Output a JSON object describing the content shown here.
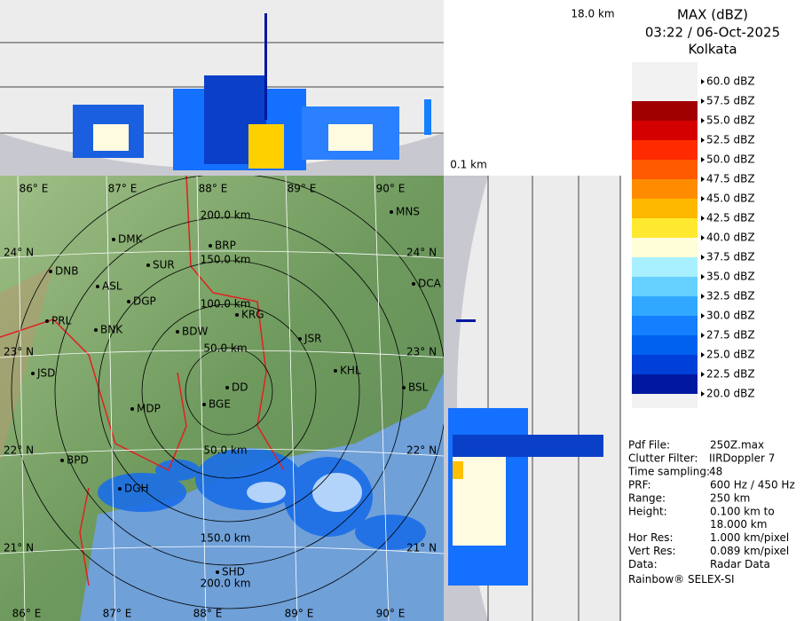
{
  "header": {
    "product": "MAX (dBZ)",
    "datetime": "03:22 / 06-Oct-2025",
    "station": "Kolkata"
  },
  "height_labels": {
    "top": "18.0 km",
    "bottom": "0.1 km"
  },
  "legend": [
    {
      "label": "60.0 dBZ",
      "color": "#f2f2f2"
    },
    {
      "label": "57.5 dBZ",
      "color": "#a00000"
    },
    {
      "label": "55.0 dBZ",
      "color": "#d40000"
    },
    {
      "label": "52.5 dBZ",
      "color": "#ff2a00"
    },
    {
      "label": "50.0 dBZ",
      "color": "#ff5a00"
    },
    {
      "label": "47.5 dBZ",
      "color": "#ff8c00"
    },
    {
      "label": "45.0 dBZ",
      "color": "#ffb800"
    },
    {
      "label": "42.5 dBZ",
      "color": "#ffe830"
    },
    {
      "label": "40.0 dBZ",
      "color": "#fffcd8"
    },
    {
      "label": "37.5 dBZ",
      "color": "#a8f0ff"
    },
    {
      "label": "35.0 dBZ",
      "color": "#66d0ff"
    },
    {
      "label": "32.5 dBZ",
      "color": "#30a8ff"
    },
    {
      "label": "30.0 dBZ",
      "color": "#1480ff"
    },
    {
      "label": "27.5 dBZ",
      "color": "#0060f0"
    },
    {
      "label": "25.0 dBZ",
      "color": "#0040d8"
    },
    {
      "label": "22.5 dBZ",
      "color": "#0018a0"
    },
    {
      "label": "20.0 dBZ",
      "color": "#f2f2f2"
    }
  ],
  "map": {
    "lon_labels": [
      "86° E",
      "87° E",
      "88° E",
      "89° E",
      "90° E"
    ],
    "lat_labels": [
      "24° N",
      "23° N",
      "22° N",
      "21° N"
    ],
    "range_labels": [
      "50.0 km",
      "100.0 km",
      "150.0 km",
      "200.0 km"
    ],
    "places": [
      "MNS",
      "DMK",
      "BRP",
      "SUR",
      "DNB",
      "ASL",
      "DGP",
      "DCA",
      "KRG",
      "PRL",
      "BNK",
      "BDW",
      "JSR",
      "KHL",
      "JSD",
      "BSL",
      "DD",
      "BGE",
      "MDP",
      "BPD",
      "DGH",
      "SHD"
    ]
  },
  "info": {
    "rows": [
      {
        "label": "Pdf File:",
        "value": "250Z.max"
      },
      {
        "label": "Clutter Filter:",
        "value": "IIRDoppler 7"
      },
      {
        "label": "Time sampling:",
        "value": "48"
      },
      {
        "label": "PRF:",
        "value": "600 Hz / 450 Hz"
      },
      {
        "label": "Range:",
        "value": "250 km"
      },
      {
        "label": "Height:",
        "value": [
          "0.100 km to",
          "18.000 km"
        ]
      },
      {
        "label": "Hor Res:",
        "value": "1.000 km/pixel"
      },
      {
        "label": "Vert Res:",
        "value": "0.089 km/pixel"
      },
      {
        "label": "Data:",
        "value": "Radar Data"
      }
    ],
    "footer": "Rainbow® SELEX-SI"
  }
}
